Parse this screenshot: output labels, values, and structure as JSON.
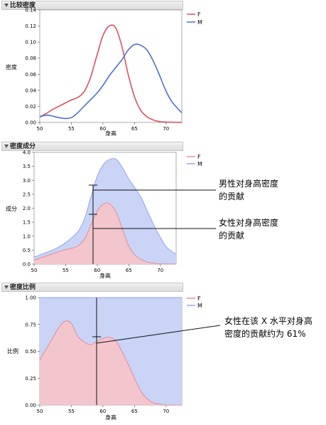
{
  "panels": [
    {
      "title": "比较密度",
      "xlabel": "身高",
      "ylabel": "密度",
      "xlim": [
        50,
        72.5
      ],
      "ylim": [
        0,
        0.14
      ],
      "xticks": [
        "50",
        "55",
        "60",
        "65",
        "70"
      ],
      "yticks": [
        "0.00",
        "0.02",
        "0.04",
        "0.06",
        "0.08",
        "0.10",
        "0.12",
        "0.14"
      ],
      "legend": [
        {
          "name": "F",
          "color": "#d9515f"
        },
        {
          "name": "M",
          "color": "#4a6fd8"
        }
      ]
    },
    {
      "title": "密度成分",
      "xlabel": "身高",
      "ylabel": "成分",
      "xlim": [
        50,
        72.5
      ],
      "ylim": [
        0,
        4.0
      ],
      "xticks": [
        "50",
        "55",
        "60",
        "65",
        "70"
      ],
      "yticks": [
        "0.0",
        "0.5",
        "1.0",
        "1.5",
        "2.0",
        "2.5",
        "3.0",
        "3.5",
        "4.0"
      ],
      "legend": [
        {
          "name": "F",
          "color": "#e8919e"
        },
        {
          "name": "M",
          "color": "#8fa8f0"
        }
      ]
    },
    {
      "title": "密度比例",
      "xlabel": "身高",
      "ylabel": "比例",
      "xlim": [
        50,
        72.5
      ],
      "ylim": [
        0,
        1.0
      ],
      "xticks": [
        "50",
        "55",
        "60",
        "65",
        "70"
      ],
      "yticks": [
        "0.00",
        "0.25",
        "0.50",
        "0.75",
        "1.00"
      ],
      "legend": [
        {
          "name": "F",
          "color": "#e8919e"
        },
        {
          "name": "M",
          "color": "#8fa8f0"
        }
      ]
    }
  ],
  "annotations": {
    "male_line1": "男性对身高密度",
    "male_line2": "的贡献",
    "female_line1": "女性对身高密度",
    "female_line2": "的贡献",
    "ratio_line1": "女性在该 X 水平对身高",
    "ratio_line2": "密度的贡献约为 61%"
  },
  "chart_data": [
    {
      "type": "line",
      "title": "比较密度",
      "xlabel": "身高",
      "ylabel": "密度",
      "xlim": [
        50,
        72.5
      ],
      "ylim": [
        0,
        0.14
      ],
      "x": [
        50,
        51,
        52,
        53,
        54,
        55,
        56,
        57,
        58,
        59,
        60,
        61,
        62,
        63,
        64,
        65,
        66,
        67,
        68,
        69,
        70,
        71,
        72.5
      ],
      "series": [
        {
          "name": "F",
          "values": [
            0.007,
            0.011,
            0.016,
            0.02,
            0.024,
            0.028,
            0.031,
            0.038,
            0.055,
            0.082,
            0.108,
            0.12,
            0.118,
            0.095,
            0.06,
            0.032,
            0.015,
            0.007,
            0.003,
            0.001,
            0.0005,
            0.0003,
            0.0002
          ]
        },
        {
          "name": "M",
          "values": [
            0.007,
            0.009,
            0.008,
            0.006,
            0.005,
            0.006,
            0.012,
            0.02,
            0.028,
            0.036,
            0.046,
            0.058,
            0.068,
            0.078,
            0.09,
            0.097,
            0.096,
            0.09,
            0.076,
            0.058,
            0.039,
            0.025,
            0.012
          ]
        }
      ]
    },
    {
      "type": "area",
      "title": "密度成分",
      "xlabel": "身高",
      "ylabel": "成分",
      "xlim": [
        50,
        72.5
      ],
      "ylim": [
        0,
        4.0
      ],
      "stacked": true,
      "x": [
        50,
        51,
        52,
        53,
        54,
        55,
        56,
        57,
        58,
        59,
        60,
        61,
        62,
        63,
        64,
        65,
        66,
        67,
        68,
        69,
        70,
        71,
        72.5
      ],
      "series": [
        {
          "name": "F",
          "values": [
            0.15,
            0.22,
            0.3,
            0.38,
            0.45,
            0.52,
            0.57,
            0.66,
            0.9,
            1.4,
            1.9,
            2.15,
            2.15,
            1.85,
            1.25,
            0.65,
            0.32,
            0.16,
            0.07,
            0.03,
            0.01,
            0.005,
            0.002
          ]
        },
        {
          "name": "M",
          "values": [
            0.1,
            0.12,
            0.12,
            0.13,
            0.18,
            0.25,
            0.38,
            0.52,
            0.73,
            1.0,
            1.25,
            1.42,
            1.6,
            1.9,
            2.2,
            2.4,
            2.4,
            2.2,
            1.8,
            1.35,
            0.95,
            0.6,
            0.35
          ]
        }
      ]
    },
    {
      "type": "area",
      "title": "密度比例",
      "xlabel": "身高",
      "ylabel": "比例",
      "xlim": [
        50,
        72.5
      ],
      "ylim": [
        0,
        1.0
      ],
      "stacked": true,
      "normalized": true,
      "x": [
        50,
        51,
        52,
        53,
        54,
        55,
        56,
        57,
        58,
        59,
        60,
        61,
        62,
        63,
        64,
        65,
        66,
        67,
        68,
        69,
        70,
        71,
        72.5
      ],
      "series": [
        {
          "name": "F",
          "values": [
            0.42,
            0.52,
            0.62,
            0.72,
            0.78,
            0.76,
            0.64,
            0.59,
            0.56,
            0.59,
            0.62,
            0.63,
            0.6,
            0.5,
            0.38,
            0.25,
            0.13,
            0.06,
            0.02,
            0.01,
            0.0,
            0.0,
            0.0
          ]
        },
        {
          "name": "M",
          "values": [
            0.58,
            0.48,
            0.38,
            0.28,
            0.22,
            0.24,
            0.36,
            0.41,
            0.44,
            0.41,
            0.38,
            0.37,
            0.4,
            0.5,
            0.62,
            0.75,
            0.87,
            0.94,
            0.98,
            0.99,
            1.0,
            1.0,
            1.0
          ]
        }
      ]
    }
  ]
}
